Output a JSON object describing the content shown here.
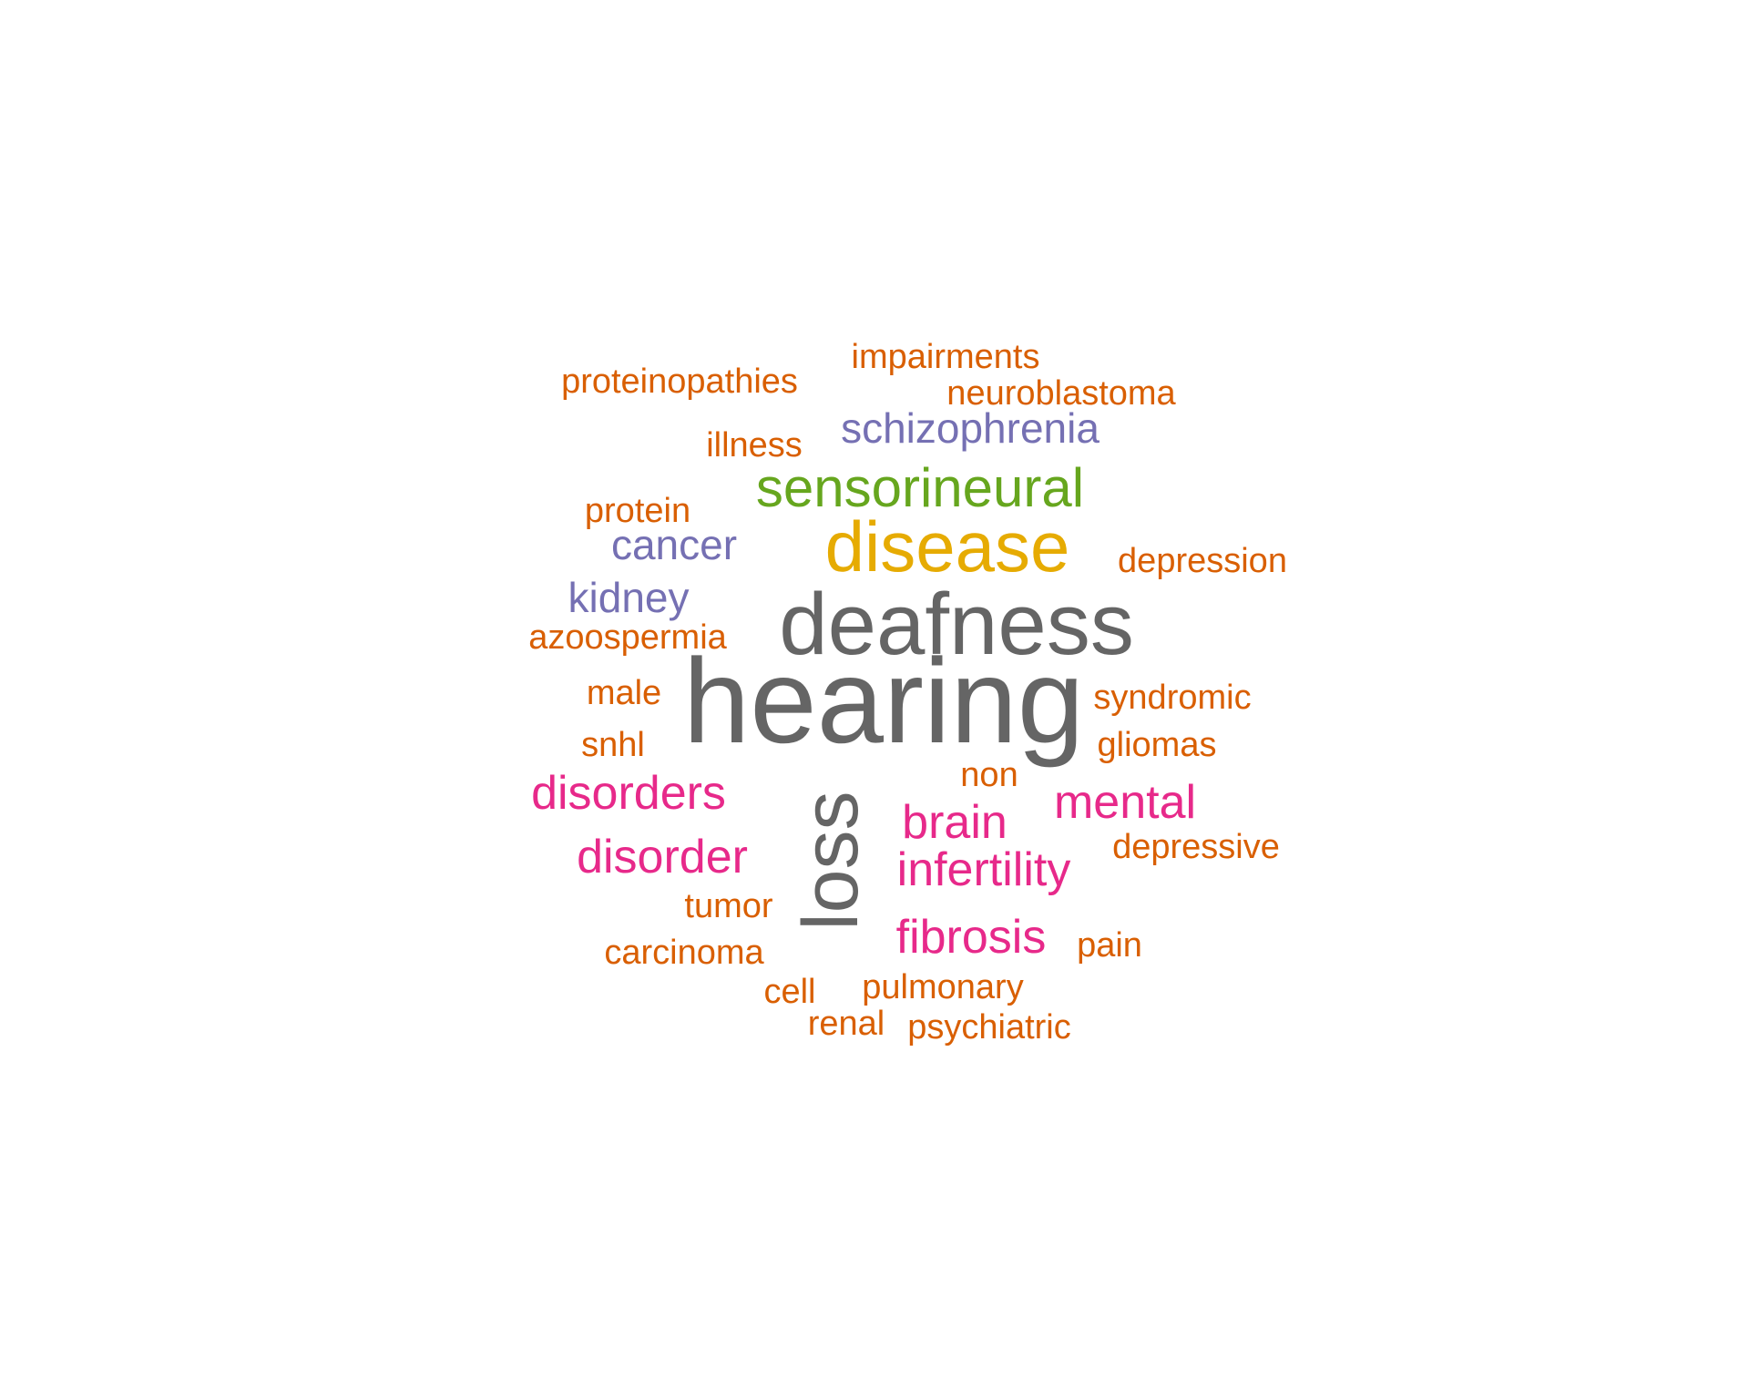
{
  "colors": {
    "gray": "#656565",
    "gold": "#e6ab02",
    "green": "#66a61e",
    "purple": "#7570b3",
    "magenta": "#e7298a",
    "orange": "#d95f02"
  },
  "words": [
    {
      "text": "hearing",
      "color": "#656565",
      "weight": 1
    },
    {
      "text": "deafness",
      "color": "#656565",
      "weight": 2
    },
    {
      "text": "loss",
      "color": "#656565",
      "weight": 3,
      "rotated": true
    },
    {
      "text": "disease",
      "color": "#e6ab02",
      "weight": 4
    },
    {
      "text": "sensorineural",
      "color": "#66a61e",
      "weight": 5
    },
    {
      "text": "schizophrenia",
      "color": "#7570b3",
      "weight": 7
    },
    {
      "text": "cancer",
      "color": "#7570b3",
      "weight": 7
    },
    {
      "text": "kidney",
      "color": "#7570b3",
      "weight": 7
    },
    {
      "text": "disorders",
      "color": "#e7298a",
      "weight": 6
    },
    {
      "text": "disorder",
      "color": "#e7298a",
      "weight": 6
    },
    {
      "text": "mental",
      "color": "#e7298a",
      "weight": 6
    },
    {
      "text": "brain",
      "color": "#e7298a",
      "weight": 6
    },
    {
      "text": "infertility",
      "color": "#e7298a",
      "weight": 6
    },
    {
      "text": "fibrosis",
      "color": "#e7298a",
      "weight": 6
    },
    {
      "text": "impairments",
      "color": "#d95f02",
      "weight": 8
    },
    {
      "text": "proteinopathies",
      "color": "#d95f02",
      "weight": 8
    },
    {
      "text": "neuroblastoma",
      "color": "#d95f02",
      "weight": 8
    },
    {
      "text": "illness",
      "color": "#d95f02",
      "weight": 8
    },
    {
      "text": "protein",
      "color": "#d95f02",
      "weight": 8
    },
    {
      "text": "depression",
      "color": "#d95f02",
      "weight": 8
    },
    {
      "text": "azoospermia",
      "color": "#d95f02",
      "weight": 8
    },
    {
      "text": "male",
      "color": "#d95f02",
      "weight": 8
    },
    {
      "text": "syndromic",
      "color": "#d95f02",
      "weight": 8
    },
    {
      "text": "snhl",
      "color": "#d95f02",
      "weight": 8
    },
    {
      "text": "gliomas",
      "color": "#d95f02",
      "weight": 8
    },
    {
      "text": "non",
      "color": "#d95f02",
      "weight": 8
    },
    {
      "text": "depressive",
      "color": "#d95f02",
      "weight": 8
    },
    {
      "text": "tumor",
      "color": "#d95f02",
      "weight": 8
    },
    {
      "text": "carcinoma",
      "color": "#d95f02",
      "weight": 8
    },
    {
      "text": "pain",
      "color": "#d95f02",
      "weight": 8
    },
    {
      "text": "cell",
      "color": "#d95f02",
      "weight": 8
    },
    {
      "text": "pulmonary",
      "color": "#d95f02",
      "weight": 8
    },
    {
      "text": "renal",
      "color": "#d95f02",
      "weight": 8
    },
    {
      "text": "psychiatric",
      "color": "#d95f02",
      "weight": 8
    }
  ]
}
